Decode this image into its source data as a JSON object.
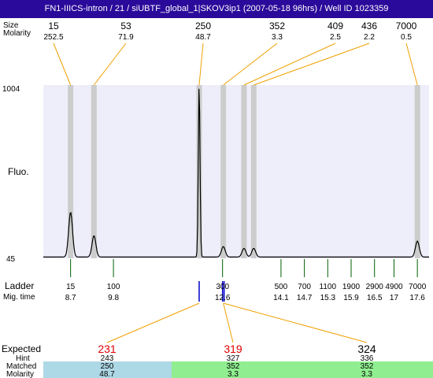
{
  "title": "FN1-IIICS-intron / 21 / siUBTF_global_1|SKOV3ip1 (2007-05-18 96hrs) / Well ID 1023359",
  "row_labels": {
    "size": "Size",
    "molarity": "Molarity",
    "fluo": "Fluo.",
    "ladder": "Ladder",
    "mig_time": "Mig. time",
    "expected": "Expected",
    "hint": "Hint",
    "matched": "Matched",
    "molarity_bottom": "Molarity"
  },
  "colors": {
    "title_bg": "#2a0a9a",
    "plot_bg": "#eeeefa",
    "band": "#cccccc",
    "connector": "#f0a000",
    "ladder_tick": "#006000",
    "marker": "#0000cc",
    "expected_red": "#dd0000",
    "matched_blue": "#add8e6",
    "matched_green": "#90ee90"
  },
  "chart_data": {
    "type": "line",
    "ylabel": "Fluo.",
    "y_ticks": [
      "1004",
      "45"
    ],
    "ylim": [
      45,
      1004
    ],
    "xlim": [
      8.0,
      17.9
    ],
    "peaks": [
      {
        "size": "15",
        "molarity": "252.5",
        "time": 8.7,
        "height": 300
      },
      {
        "size": "53",
        "molarity": "71.9",
        "time": 9.3,
        "height": 170
      },
      {
        "size": "250",
        "molarity": "48.7",
        "time": 12.0,
        "height": 1004
      },
      {
        "size": "352",
        "molarity": "3.3",
        "time": 12.62,
        "height": 110
      },
      {
        "size": "409",
        "molarity": "2.5",
        "time": 13.15,
        "height": 100
      },
      {
        "size": "436",
        "molarity": "2.2",
        "time": 13.4,
        "height": 100
      },
      {
        "size": "7000",
        "molarity": "0.5",
        "time": 17.6,
        "height": 140
      }
    ],
    "ladder": [
      {
        "size": "15",
        "time": "8.7",
        "t": 8.7
      },
      {
        "size": "100",
        "time": "9.8",
        "t": 9.8
      },
      {
        "size": "300",
        "time": "12.6",
        "t": 12.6
      },
      {
        "size": "500",
        "time": "14.1",
        "t": 14.1
      },
      {
        "size": "700",
        "time": "14.7",
        "t": 14.7
      },
      {
        "size": "1100",
        "time": "15.3",
        "t": 15.3
      },
      {
        "size": "1900",
        "time": "15.9",
        "t": 15.9
      },
      {
        "size": "2900",
        "time": "16.5",
        "t": 16.5
      },
      {
        "size": "4900",
        "time": "17",
        "t": 17.0
      },
      {
        "size": "7000",
        "time": "17.6",
        "t": 17.6
      }
    ],
    "expected": [
      {
        "expected": "231",
        "hint": "243",
        "matched": "250",
        "molarity": "48.7",
        "matched_color": "blue",
        "expected_color": "red",
        "time": 12.0
      },
      {
        "expected": "319",
        "hint": "327",
        "matched": "352",
        "molarity": "3.3",
        "matched_color": "green",
        "expected_color": "red",
        "time": 12.62
      },
      {
        "expected": "324",
        "hint": "336",
        "matched": "352",
        "molarity": "3.3",
        "matched_color": "green",
        "expected_color": "black",
        "time": 12.62
      }
    ]
  }
}
